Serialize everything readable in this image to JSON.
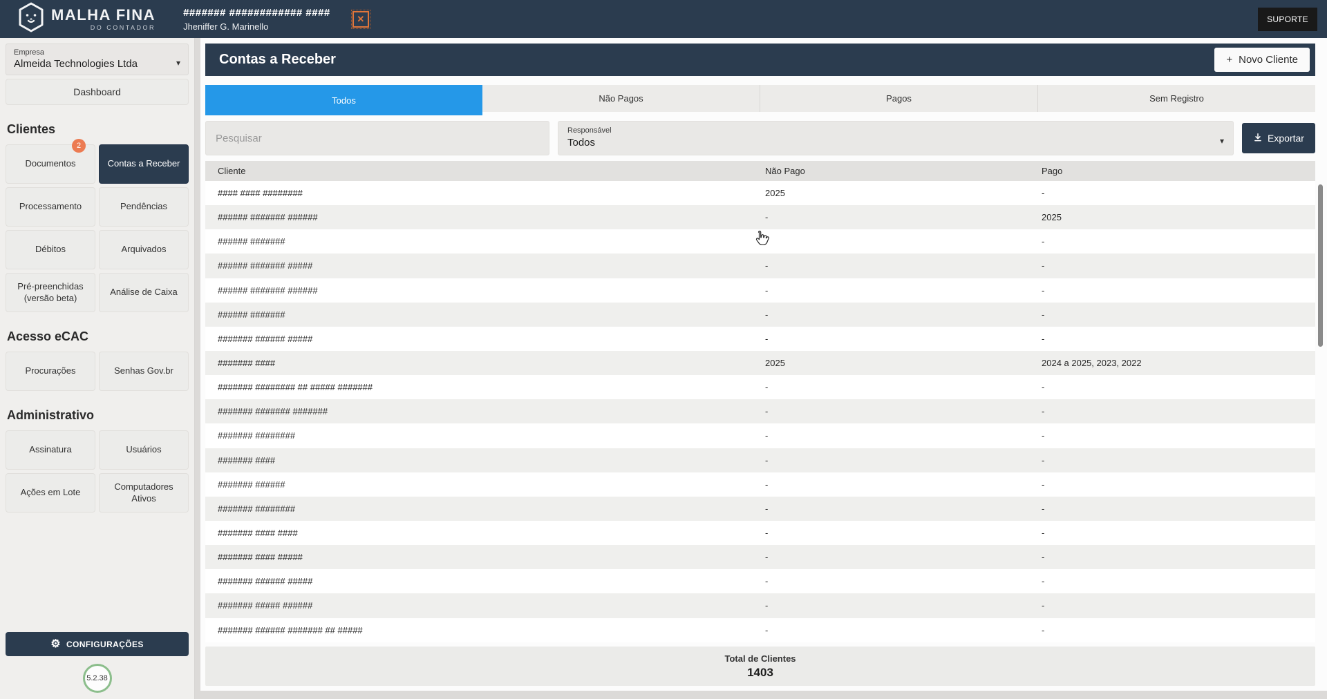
{
  "topbar": {
    "brand_line1": "MALHA FINA",
    "brand_line2": "DO CONTADOR",
    "title": "####### ############ ####",
    "subtitle": "Jheniffer G. Marinello",
    "close_label": "✕",
    "support_label": "SUPORTE"
  },
  "sidebar": {
    "company": {
      "label": "Empresa",
      "value": "Almeida Technologies Ltda",
      "caret": "▾"
    },
    "dashboard_label": "Dashboard",
    "sections": [
      {
        "title": "Clientes",
        "buttons": [
          {
            "label": "Documentos",
            "badge": "2"
          },
          {
            "label": "Contas a Receber",
            "active": true
          },
          {
            "label": "Processamento"
          },
          {
            "label": "Pendências"
          },
          {
            "label": "Débitos"
          },
          {
            "label": "Arquivados"
          },
          {
            "label": "Pré-preenchidas (versão beta)"
          },
          {
            "label": "Análise de Caixa"
          }
        ]
      },
      {
        "title": "Acesso eCAC",
        "buttons": [
          {
            "label": "Procurações"
          },
          {
            "label": "Senhas Gov.br"
          }
        ]
      },
      {
        "title": "Administrativo",
        "buttons": [
          {
            "label": "Assinatura"
          },
          {
            "label": "Usuários"
          },
          {
            "label": "Ações em Lote"
          },
          {
            "label": "Computadores Ativos"
          }
        ]
      }
    ],
    "settings_label": "CONFIGURAÇÕES",
    "settings_icon": "⚙",
    "version": "5.2.38"
  },
  "main": {
    "page_title": "Contas a Receber",
    "new_client": {
      "icon": "+",
      "label": "Novo Cliente"
    },
    "tabs": {
      "items": [
        "Todos",
        "Não Pagos",
        "Pagos",
        "Sem Registro"
      ],
      "active_index": 0
    },
    "search_placeholder": "Pesquisar",
    "responsavel": {
      "label": "Responsável",
      "value": "Todos",
      "caret": "▾"
    },
    "export_label": "Exportar",
    "table": {
      "columns": [
        "Cliente",
        "Não Pago",
        "Pago"
      ],
      "rows": [
        {
          "cliente": "#### #### ########",
          "nao_pago": "2025",
          "pago": "-"
        },
        {
          "cliente": "###### ####### ######",
          "nao_pago": "-",
          "pago": "2025"
        },
        {
          "cliente": "###### #######",
          "nao_pago": "-",
          "pago": "-"
        },
        {
          "cliente": "###### ####### #####",
          "nao_pago": "-",
          "pago": "-"
        },
        {
          "cliente": "###### ####### ######",
          "nao_pago": "-",
          "pago": "-"
        },
        {
          "cliente": "###### #######",
          "nao_pago": "-",
          "pago": "-"
        },
        {
          "cliente": "####### ###### #####",
          "nao_pago": "-",
          "pago": "-"
        },
        {
          "cliente": "####### ####",
          "nao_pago": "2025",
          "pago": "2024 a 2025, 2023, 2022"
        },
        {
          "cliente": "####### ######## ## ##### #######",
          "nao_pago": "-",
          "pago": "-"
        },
        {
          "cliente": "####### ####### #######",
          "nao_pago": "-",
          "pago": "-"
        },
        {
          "cliente": "####### ########",
          "nao_pago": "-",
          "pago": "-"
        },
        {
          "cliente": "####### ####",
          "nao_pago": "-",
          "pago": "-"
        },
        {
          "cliente": "####### ######",
          "nao_pago": "-",
          "pago": "-"
        },
        {
          "cliente": "####### ########",
          "nao_pago": "-",
          "pago": "-"
        },
        {
          "cliente": "####### #### ####",
          "nao_pago": "-",
          "pago": "-"
        },
        {
          "cliente": "####### #### #####",
          "nao_pago": "-",
          "pago": "-"
        },
        {
          "cliente": "####### ###### #####",
          "nao_pago": "-",
          "pago": "-"
        },
        {
          "cliente": "####### ##### ######",
          "nao_pago": "-",
          "pago": "-"
        },
        {
          "cliente": "####### ###### ####### ## #####",
          "nao_pago": "-",
          "pago": "-"
        }
      ]
    },
    "footer": {
      "label": "Total de Clientes",
      "total": "1403"
    }
  },
  "colors": {
    "navy": "#2b3c4f",
    "active_tab_blue": "#2598e8",
    "badge_orange": "#ec7b52",
    "close_orange": "#e0763a",
    "version_green": "#8cbe8c"
  }
}
